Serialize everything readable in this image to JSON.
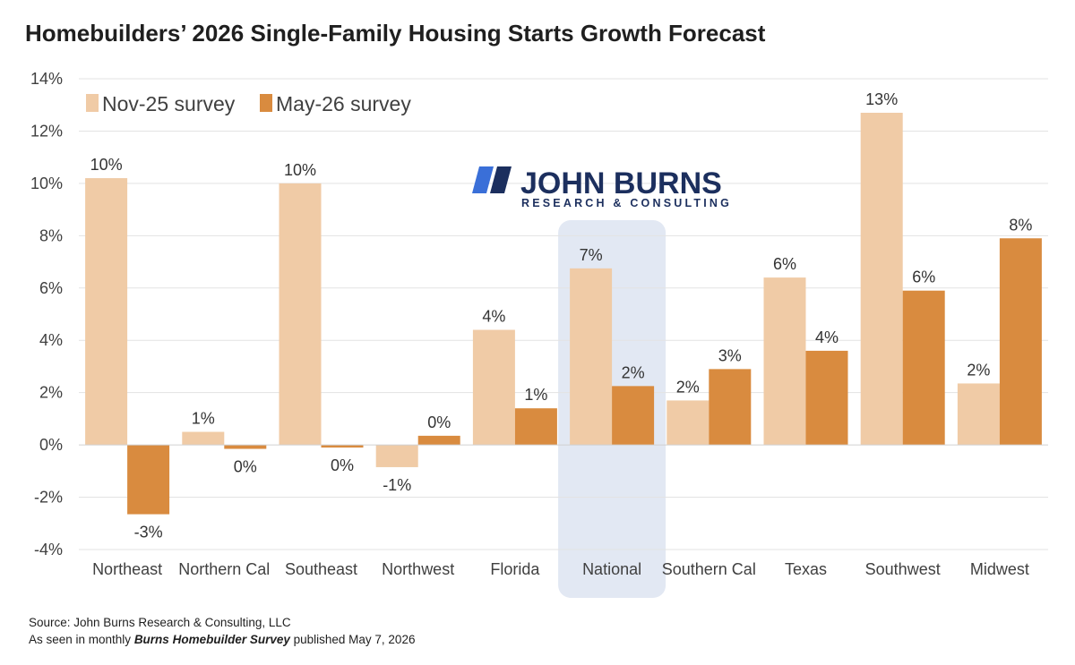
{
  "chart_data": {
    "type": "bar",
    "title": "Homebuilders’ 2026 Single-Family Housing Starts Growth Forecast",
    "categories": [
      "Northeast",
      "Northern Cal",
      "Southeast",
      "Northwest",
      "Florida",
      "National",
      "Southern Cal",
      "Texas",
      "Southwest",
      "Midwest"
    ],
    "series": [
      {
        "name": "Nov-25 survey",
        "color": "#f0cba6",
        "values": [
          10.2,
          0.5,
          10.0,
          -0.85,
          4.4,
          6.75,
          1.7,
          6.4,
          12.7,
          2.35
        ],
        "labels": [
          "10%",
          "1%",
          "10%",
          "-1%",
          "4%",
          "7%",
          "2%",
          "6%",
          "13%",
          "2%"
        ]
      },
      {
        "name": "May-26 survey",
        "color": "#d98b3f",
        "values": [
          -2.65,
          -0.15,
          -0.1,
          0.35,
          1.4,
          2.25,
          2.9,
          3.6,
          5.9,
          7.9
        ],
        "labels": [
          "-3%",
          "0%",
          "0%",
          "0%",
          "1%",
          "2%",
          "3%",
          "4%",
          "6%",
          "8%"
        ]
      }
    ],
    "yticks": [
      -4,
      -2,
      0,
      2,
      4,
      6,
      8,
      10,
      12,
      14
    ],
    "ytick_labels": [
      "-4%",
      "-2%",
      "0%",
      "2%",
      "4%",
      "6%",
      "8%",
      "10%",
      "12%",
      "14%"
    ],
    "ylim": [
      -4,
      14
    ],
    "grid": true,
    "legend_position": "top-left",
    "highlighted_category": "National",
    "highlight_color": "#e2e8f3"
  },
  "logo": {
    "main": "JOHN BURNS",
    "sub": "RESEARCH & CONSULTING",
    "color": "#1c2f5e",
    "accent": "#3a6fd8"
  },
  "footer": {
    "source": "Source: John Burns Research & Consulting, LLC",
    "prefix": "As seen in monthly ",
    "publication": "Burns Homebuilder Survey",
    "suffix": " published May 7, 2026"
  }
}
